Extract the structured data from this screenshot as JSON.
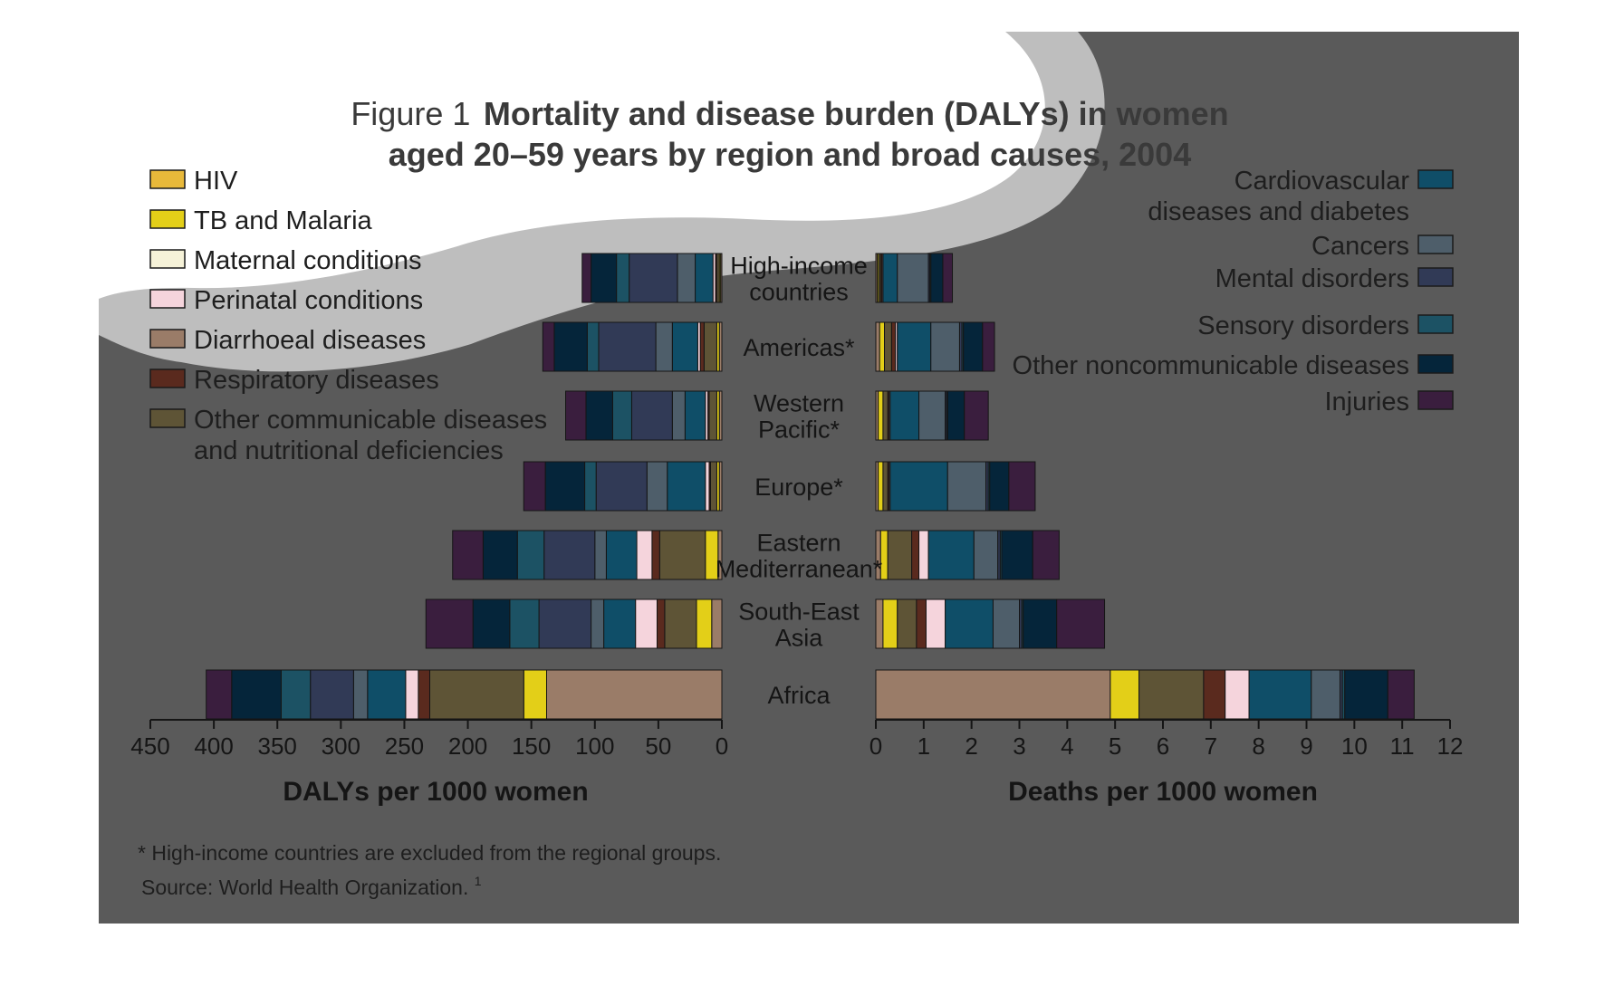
{
  "title": {
    "prefix": "Figure 1",
    "bold_line1": "Mortality and disease burden (DALYs) in women",
    "bold_line2": "aged 20–59 years by region and broad causes, 2004"
  },
  "footnote": "* High-income countries are excluded from the regional groups.",
  "source": "Source: World Health Organization.",
  "source_superscript": "1",
  "colors": {
    "panel_background": "#5a5a5a",
    "title_band": "#ffffff",
    "title_band_shadow": "#bebebe"
  },
  "legend_left": [
    {
      "lines": [
        "HIV"
      ],
      "color": "#e8b93a"
    },
    {
      "lines": [
        "TB and Malaria"
      ],
      "color": "#e3cf18"
    },
    {
      "lines": [
        "Maternal conditions"
      ],
      "color": "#f6f2d8"
    },
    {
      "lines": [
        "Perinatal conditions"
      ],
      "color": "#f5d4dc"
    },
    {
      "lines": [
        "Diarrhoeal diseases"
      ],
      "color": "#9a7c68"
    },
    {
      "lines": [
        "Respiratory diseases"
      ],
      "color": "#5a2a1e"
    },
    {
      "lines": [
        "Other communicable diseases",
        "and nutritional deficiencies"
      ],
      "color": "#5e5436"
    }
  ],
  "legend_right": [
    {
      "lines": [
        "Cardiovascular",
        "diseases and diabetes"
      ],
      "color": "#0f4e68"
    },
    {
      "lines": [
        "Cancers"
      ],
      "color": "#4e5e6a"
    },
    {
      "lines": [
        "Mental disorders"
      ],
      "color": "#313a56"
    },
    {
      "lines": [
        "Sensory disorders"
      ],
      "color": "#1c5264"
    },
    {
      "lines": [
        "Other noncommunicable diseases"
      ],
      "color": "#05253a"
    },
    {
      "lines": [
        "Injuries"
      ],
      "color": "#3a1e3e"
    }
  ],
  "chart_data": [
    {
      "type": "bar",
      "orientation": "horizontal",
      "stacked": true,
      "direction": "right-to-left",
      "xlabel": "DALYs per 1000 women",
      "xlim": [
        0,
        450
      ],
      "xticks": [
        450,
        400,
        350,
        300,
        250,
        200,
        150,
        100,
        50,
        0
      ],
      "categories": [
        [
          "High-income",
          "countries"
        ],
        [
          "Americas*"
        ],
        [
          "Western",
          "Pacific*"
        ],
        [
          "Europe*"
        ],
        [
          "Eastern",
          "Mediterranean*"
        ],
        [
          "South-East",
          "Asia"
        ],
        [
          "Africa"
        ]
      ],
      "series": [
        {
          "name": "Diarrhoeal diseases",
          "values": [
            1,
            2,
            2,
            2,
            3,
            8,
            138
          ]
        },
        {
          "name": "TB and Malaria",
          "values": [
            1,
            2,
            2,
            2,
            10,
            12,
            18
          ]
        },
        {
          "name": "Other communicable diseases and nutritional deficiencies",
          "values": [
            2,
            10,
            6,
            5,
            36,
            25,
            74
          ]
        },
        {
          "name": "Respiratory diseases",
          "values": [
            1,
            3,
            1,
            1,
            6,
            6,
            9
          ]
        },
        {
          "name": "Perinatal conditions",
          "values": [
            2,
            2,
            2,
            3,
            12,
            17,
            10
          ]
        },
        {
          "name": "Cardiovascular diseases and diabetes",
          "values": [
            14,
            20,
            16,
            30,
            24,
            25,
            30
          ]
        },
        {
          "name": "Cancers",
          "values": [
            14,
            13,
            10,
            16,
            9,
            10,
            11
          ]
        },
        {
          "name": "Mental disorders",
          "values": [
            38,
            45,
            32,
            40,
            40,
            41,
            34
          ]
        },
        {
          "name": "Sensory disorders",
          "values": [
            10,
            9,
            15,
            9,
            21,
            23,
            23
          ]
        },
        {
          "name": "Other noncommunicable diseases",
          "values": [
            20,
            26,
            21,
            31,
            27,
            29,
            39
          ]
        },
        {
          "name": "Injuries",
          "values": [
            7,
            9,
            16,
            17,
            24,
            37,
            20
          ]
        }
      ]
    },
    {
      "type": "bar",
      "orientation": "horizontal",
      "stacked": true,
      "direction": "left-to-right",
      "xlabel": "Deaths per 1000 women",
      "xlim": [
        0,
        12
      ],
      "xticks": [
        0,
        1,
        2,
        3,
        4,
        5,
        6,
        7,
        8,
        9,
        10,
        11,
        12
      ],
      "categories": [
        [
          "High-income",
          "countries"
        ],
        [
          "Americas*"
        ],
        [
          "Western",
          "Pacific*"
        ],
        [
          "Europe*"
        ],
        [
          "Eastern",
          "Mediterranean*"
        ],
        [
          "South-East",
          "Asia"
        ],
        [
          "Africa"
        ]
      ],
      "series": [
        {
          "name": "Diarrhoeal diseases",
          "values": [
            0.03,
            0.08,
            0.05,
            0.05,
            0.1,
            0.15,
            4.9
          ]
        },
        {
          "name": "TB and Malaria",
          "values": [
            0.03,
            0.1,
            0.1,
            0.1,
            0.15,
            0.3,
            0.6
          ]
        },
        {
          "name": "Other communicable diseases and nutritional deficiencies",
          "values": [
            0.04,
            0.15,
            0.1,
            0.1,
            0.5,
            0.4,
            1.35
          ]
        },
        {
          "name": "Respiratory diseases",
          "values": [
            0.03,
            0.08,
            0.03,
            0.03,
            0.15,
            0.2,
            0.45
          ]
        },
        {
          "name": "Perinatal conditions",
          "values": [
            0.02,
            0.04,
            0.02,
            0.02,
            0.2,
            0.4,
            0.5
          ]
        },
        {
          "name": "Cardiovascular diseases and diabetes",
          "values": [
            0.3,
            0.7,
            0.6,
            1.2,
            0.95,
            1.0,
            1.3
          ]
        },
        {
          "name": "Cancers",
          "values": [
            0.65,
            0.6,
            0.55,
            0.8,
            0.5,
            0.55,
            0.6
          ]
        },
        {
          "name": "Mental disorders",
          "values": [
            0.03,
            0.05,
            0.03,
            0.05,
            0.05,
            0.05,
            0.05
          ]
        },
        {
          "name": "Sensory disorders",
          "values": [
            0.02,
            0.03,
            0.02,
            0.03,
            0.03,
            0.03,
            0.05
          ]
        },
        {
          "name": "Other noncommunicable diseases",
          "values": [
            0.25,
            0.4,
            0.35,
            0.4,
            0.65,
            0.7,
            0.9
          ]
        },
        {
          "name": "Injuries",
          "values": [
            0.2,
            0.25,
            0.5,
            0.55,
            0.55,
            1.0,
            0.55
          ]
        }
      ]
    }
  ]
}
